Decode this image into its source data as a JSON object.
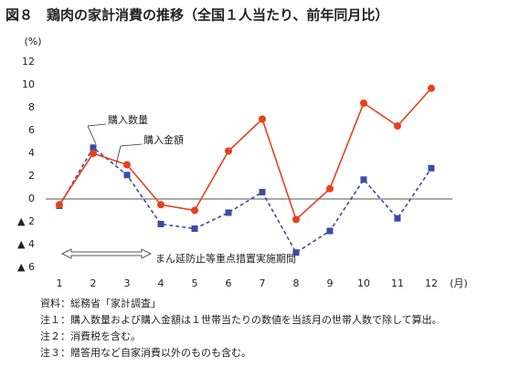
{
  "chart_data": {
    "type": "line",
    "title": "図８　鶏肉の家計消費の推移（全国１人当たり、前年同月比）",
    "y_unit": "(%)",
    "x_unit": "(月)",
    "categories": [
      "1",
      "2",
      "3",
      "4",
      "5",
      "6",
      "7",
      "8",
      "9",
      "10",
      "11",
      "12"
    ],
    "series": [
      {
        "name": "購入数量",
        "color": "#3b4ba3",
        "dashed": true,
        "marker": "square",
        "values": [
          -0.6,
          4.5,
          2.1,
          -2.2,
          -2.6,
          -1.2,
          0.6,
          -4.7,
          -2.8,
          1.7,
          -1.7,
          2.7
        ]
      },
      {
        "name": "購入金額",
        "color": "#e8401c",
        "dashed": false,
        "marker": "circle",
        "values": [
          -0.5,
          4.0,
          3.0,
          -0.5,
          -1.0,
          4.2,
          7.0,
          -1.8,
          0.9,
          8.4,
          6.4,
          9.7
        ]
      }
    ],
    "ylim": [
      -6,
      12
    ],
    "yticks": [
      12,
      10,
      8,
      6,
      4,
      2,
      0,
      {
        "value": -2,
        "label": "▲ 2"
      },
      {
        "value": -4,
        "label": "▲ 4"
      },
      {
        "value": -6,
        "label": "▲ 6"
      }
    ],
    "annotation": "まん延防止等重点措置実施期間",
    "notes": [
      "資料：総務省「家計調査」",
      "注１：購入数量および購入金額は１世帯当たりの数値を当該月の世帯人数で除して算出。",
      "注２：消費税を含む。",
      "注３：贈答用など自家消費以外のものも含む。"
    ]
  }
}
